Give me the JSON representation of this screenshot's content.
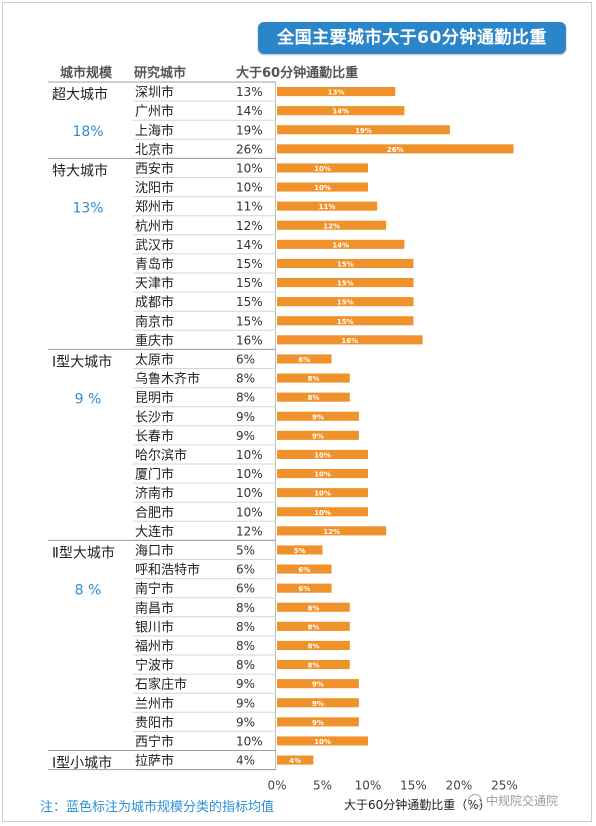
{
  "title": "全国主要城市大于60分钟通勤比重",
  "headers": {
    "scale": "城市规模",
    "city": "研究城市",
    "metric": "大于60分钟通勤比重"
  },
  "footnote": "注：蓝色标注为城市规模分类的指标均值",
  "watermark": "中规院交通院",
  "colors": {
    "bar": "#f0922b",
    "avg": "#2b8fd6",
    "title_bg": "#2b86c9"
  },
  "chart_data": {
    "type": "bar",
    "orientation": "horizontal",
    "xlabel": "大于60分钟通勤比重（%）",
    "xlim": [
      0,
      30
    ],
    "xticks": [
      "0%",
      "5%",
      "10%",
      "15%",
      "20%",
      "25%"
    ],
    "groups": [
      {
        "name": "超大城市",
        "avg": "18%",
        "cities": [
          {
            "name": "深圳市",
            "value": 13
          },
          {
            "name": "广州市",
            "value": 14
          },
          {
            "name": "上海市",
            "value": 19
          },
          {
            "name": "北京市",
            "value": 26
          }
        ]
      },
      {
        "name": "特大城市",
        "avg": "13%",
        "cities": [
          {
            "name": "西安市",
            "value": 10
          },
          {
            "name": "沈阳市",
            "value": 10
          },
          {
            "name": "郑州市",
            "value": 11
          },
          {
            "name": "杭州市",
            "value": 12
          },
          {
            "name": "武汉市",
            "value": 14
          },
          {
            "name": "青岛市",
            "value": 15
          },
          {
            "name": "天津市",
            "value": 15
          },
          {
            "name": "成都市",
            "value": 15
          },
          {
            "name": "南京市",
            "value": 15
          },
          {
            "name": "重庆市",
            "value": 16
          }
        ]
      },
      {
        "name": "Ⅰ型大城市",
        "avg": "9 %",
        "cities": [
          {
            "name": "太原市",
            "value": 6
          },
          {
            "name": "乌鲁木齐市",
            "value": 8
          },
          {
            "name": "昆明市",
            "value": 8
          },
          {
            "name": "长沙市",
            "value": 9
          },
          {
            "name": "长春市",
            "value": 9
          },
          {
            "name": "哈尔滨市",
            "value": 10
          },
          {
            "name": "厦门市",
            "value": 10
          },
          {
            "name": "济南市",
            "value": 10
          },
          {
            "name": "合肥市",
            "value": 10
          },
          {
            "name": "大连市",
            "value": 12
          }
        ]
      },
      {
        "name": "Ⅱ型大城市",
        "avg": "8 %",
        "cities": [
          {
            "name": "海口市",
            "value": 5
          },
          {
            "name": "呼和浩特市",
            "value": 6
          },
          {
            "name": "南宁市",
            "value": 6
          },
          {
            "name": "南昌市",
            "value": 8
          },
          {
            "name": "银川市",
            "value": 8
          },
          {
            "name": "福州市",
            "value": 8
          },
          {
            "name": "宁波市",
            "value": 8
          },
          {
            "name": "石家庄市",
            "value": 9
          },
          {
            "name": "兰州市",
            "value": 9
          },
          {
            "name": "贵阳市",
            "value": 9
          },
          {
            "name": "西宁市",
            "value": 10
          }
        ]
      },
      {
        "name": "Ⅰ型小城市",
        "avg": "",
        "cities": [
          {
            "name": "拉萨市",
            "value": 4
          }
        ]
      }
    ]
  }
}
